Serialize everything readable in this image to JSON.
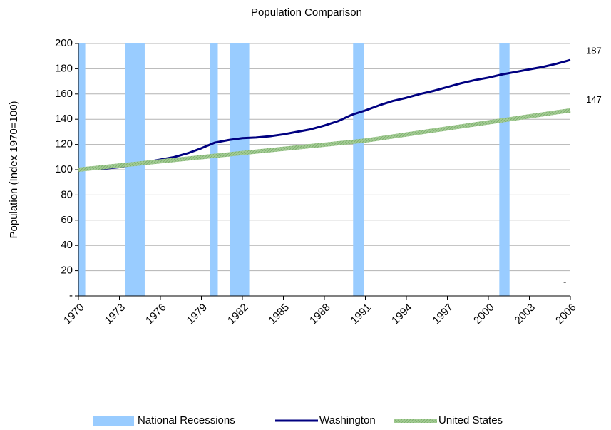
{
  "chart_data": {
    "type": "line",
    "title": "Population Comparison",
    "y_label": "Population (Index 1970=100)",
    "x": [
      1970,
      1971,
      1972,
      1973,
      1974,
      1975,
      1976,
      1977,
      1978,
      1979,
      1980,
      1981,
      1982,
      1983,
      1984,
      1985,
      1986,
      1987,
      1988,
      1989,
      1990,
      1991,
      1992,
      1993,
      1994,
      1995,
      1996,
      1997,
      1998,
      1999,
      2000,
      2001,
      2002,
      2003,
      2004,
      2005,
      2006
    ],
    "xlim": [
      1970,
      2006
    ],
    "xticks": [
      1970,
      1973,
      1976,
      1979,
      1982,
      1985,
      1988,
      1991,
      1994,
      1997,
      2000,
      2003,
      2006
    ],
    "ylim": [
      0,
      200
    ],
    "yticks": [
      {
        "value": 0,
        "label": "-"
      },
      20,
      40,
      60,
      80,
      100,
      120,
      140,
      160,
      180,
      200
    ],
    "grid": true,
    "recessions": {
      "name": "National Recessions",
      "color": "#99ccff",
      "start": [
        1970,
        1973.4,
        1979.6,
        1981.1,
        1990.1,
        2000.8
      ],
      "end": [
        1970.5,
        1974.85,
        1980.2,
        1982.5,
        1990.9,
        2001.55
      ],
      "values": [
        200,
        200,
        200,
        200,
        200,
        200
      ]
    },
    "series": [
      {
        "name": "Washington",
        "color": "#000080",
        "values": [
          100,
          100.5,
          101,
          102,
          104,
          106,
          108,
          110,
          113,
          117,
          121.5,
          123.5,
          125,
          125.5,
          126.5,
          128,
          130,
          132,
          135,
          138.5,
          143.5,
          147,
          151,
          154.5,
          157,
          160,
          162.5,
          165.5,
          168.5,
          171,
          173,
          175.5,
          177.5,
          179.5,
          181.5,
          184,
          187
        ],
        "end_label": "187"
      },
      {
        "name": "United States",
        "color": "#a3cc94",
        "values": [
          100,
          101.1,
          102.2,
          103.3,
          104.4,
          105.5,
          106.6,
          107.7,
          108.8,
          109.9,
          111,
          112.1,
          113.2,
          114.3,
          115.4,
          116.5,
          117.6,
          118.7,
          119.8,
          120.9,
          122,
          123.1,
          124.7,
          126.3,
          127.9,
          129.5,
          131.1,
          132.7,
          134.3,
          135.9,
          137.5,
          139.1,
          140.7,
          142.3,
          143.9,
          145.5,
          147
        ],
        "end_label": "147"
      }
    ],
    "annotations": [
      "-"
    ]
  }
}
